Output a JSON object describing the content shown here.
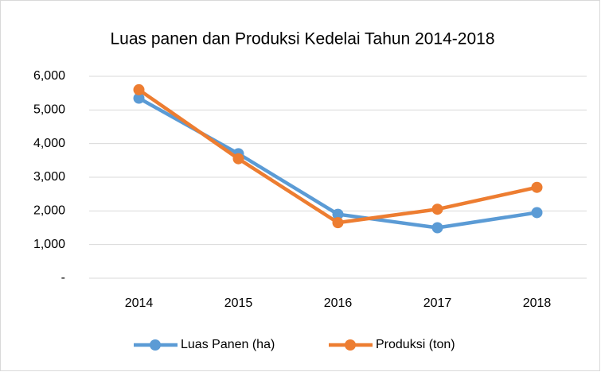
{
  "chart_data": {
    "type": "line",
    "title": "Luas panen dan Produksi Kedelai Tahun 2014-2018",
    "categories": [
      "2014",
      "2015",
      "2016",
      "2017",
      "2018"
    ],
    "series": [
      {
        "name": "Luas Panen (ha)",
        "color": "#5b9bd5",
        "values": [
          5350,
          3700,
          1900,
          1500,
          1950
        ]
      },
      {
        "name": "Produksi (ton)",
        "color": "#ed7d31",
        "values": [
          5600,
          3550,
          1650,
          2050,
          2700
        ]
      }
    ],
    "ylim": [
      0,
      6000
    ],
    "yticks": [
      {
        "value": 0,
        "label": "-"
      },
      {
        "value": 1000,
        "label": "1,000"
      },
      {
        "value": 2000,
        "label": "2,000"
      },
      {
        "value": 3000,
        "label": "3,000"
      },
      {
        "value": 4000,
        "label": "4,000"
      },
      {
        "value": 5000,
        "label": "5,000"
      },
      {
        "value": 6000,
        "label": "6,000"
      }
    ],
    "grid": true,
    "legend": "bottom"
  }
}
